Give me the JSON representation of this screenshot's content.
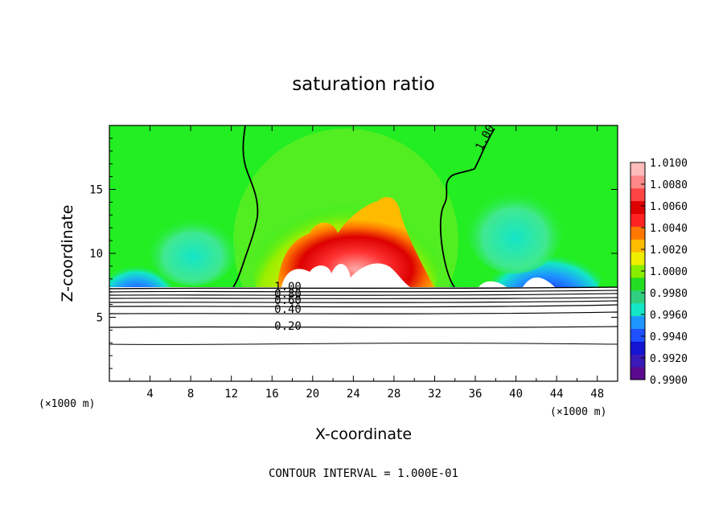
{
  "chart_data": {
    "type": "heatmap",
    "title": "saturation ratio",
    "xlabel": "X-coordinate",
    "ylabel": "Z-coordinate",
    "x_unit_left": "(×1000 m)",
    "x_unit_right": "(×1000 m)",
    "xlim": [
      0,
      50
    ],
    "ylim": [
      0,
      20
    ],
    "x_ticks": [
      4,
      8,
      12,
      16,
      20,
      24,
      28,
      32,
      36,
      40,
      44,
      48
    ],
    "x_tick_labels": [
      "4",
      "8",
      "12",
      "16",
      "20",
      "24",
      "28",
      "32",
      "36",
      "40",
      "44",
      "48"
    ],
    "y_ticks": [
      5,
      10,
      15
    ],
    "y_tick_labels": [
      "5",
      "10",
      "15"
    ],
    "colorbar": {
      "min": 0.99,
      "max": 1.01,
      "labels": [
        "1.0100",
        "1.0080",
        "1.0060",
        "1.0040",
        "1.0020",
        "1.0000",
        "0.9980",
        "0.9960",
        "0.9940",
        "0.9920",
        "0.9900"
      ],
      "colors": [
        "#5a0a8c",
        "#3a1ab8",
        "#1414d2",
        "#1e50ff",
        "#1e96ff",
        "#14e6c8",
        "#30d080",
        "#22dd22",
        "#88ee00",
        "#eeee00",
        "#ffbb00",
        "#ff7700",
        "#ff2222",
        "#dd0000",
        "#ff4444",
        "#ff8888",
        "#ffbbbb"
      ]
    },
    "regions": [
      {
        "name": "near-saturated background",
        "value": 1.0002,
        "color": "#22ee22"
      },
      {
        "name": "central supersaturated plume",
        "x_range": [
          13,
          34
        ],
        "peak_value": 1.01
      },
      {
        "name": "left subsaturated patch",
        "x_range": [
          0,
          10
        ],
        "min_value": 0.991
      },
      {
        "name": "right subsaturated patch",
        "x_range": [
          36,
          48
        ],
        "min_value": 0.991
      }
    ],
    "contour_levels": [
      {
        "label": "1.00",
        "z": 7.2
      },
      {
        "label": "0.80",
        "z": 6.9
      },
      {
        "label": "0.60",
        "z": 6.4
      },
      {
        "label": "0.40",
        "z": 5.8
      },
      {
        "label": "0.20",
        "z": 4.3
      }
    ],
    "extra_contour_label": "1.00",
    "contour_interval_text": "CONTOUR INTERVAL = 1.000E-01",
    "grid": false,
    "legend": "colorbar-right"
  }
}
